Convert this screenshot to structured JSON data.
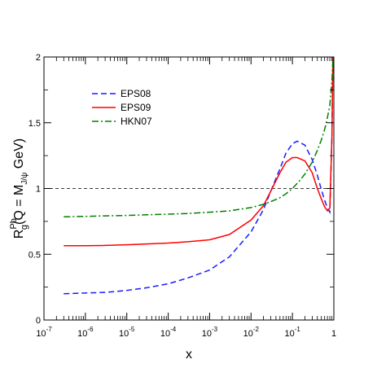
{
  "chart_data": {
    "type": "line",
    "xlabel": "x",
    "ylabel": {
      "main": "R",
      "sub": "g",
      "sup": "Pb",
      "rest": "(Q = M",
      "rest_sub": "J/ψ",
      "rest_end": " GeV)"
    },
    "xscale": "log",
    "xlim": [
      1e-07,
      1
    ],
    "ylim": [
      0,
      2
    ],
    "grid": false,
    "legend_placement": "top-left",
    "reference_line": {
      "y": 1,
      "style": "dashed",
      "color": "#000000"
    },
    "x_ticks": [
      {
        "value": 1e-07,
        "base": "10",
        "exp": "-7"
      },
      {
        "value": 1e-06,
        "base": "10",
        "exp": "-6"
      },
      {
        "value": 1e-05,
        "base": "10",
        "exp": "-5"
      },
      {
        "value": 0.0001,
        "base": "10",
        "exp": "-4"
      },
      {
        "value": 0.001,
        "base": "10",
        "exp": "-3"
      },
      {
        "value": 0.01,
        "base": "10",
        "exp": "-2"
      },
      {
        "value": 0.1,
        "base": "10",
        "exp": "-1"
      },
      {
        "value": 1,
        "base": "1",
        "exp": ""
      }
    ],
    "y_ticks": [
      {
        "value": 0,
        "label": "0"
      },
      {
        "value": 0.5,
        "label": "0.5"
      },
      {
        "value": 1,
        "label": "1"
      },
      {
        "value": 1.5,
        "label": "1.5"
      },
      {
        "value": 2,
        "label": "2"
      }
    ],
    "series": [
      {
        "name": "EPS08",
        "color": "#1a1aff",
        "style": "dashed",
        "x": [
          3e-07,
          1e-06,
          3e-06,
          1e-05,
          3e-05,
          0.0001,
          0.0003,
          0.001,
          0.003,
          0.01,
          0.02,
          0.03,
          0.05,
          0.07,
          0.1,
          0.13,
          0.2,
          0.3,
          0.4,
          0.5,
          0.6,
          0.7,
          0.8,
          0.9,
          0.95
        ],
        "y": [
          0.2,
          0.205,
          0.21,
          0.225,
          0.245,
          0.275,
          0.32,
          0.38,
          0.48,
          0.67,
          0.84,
          0.98,
          1.15,
          1.27,
          1.34,
          1.36,
          1.33,
          1.22,
          1.1,
          0.99,
          0.91,
          0.85,
          0.82,
          1.4,
          2.0
        ]
      },
      {
        "name": "EPS09",
        "color": "#ff0000",
        "style": "solid",
        "x": [
          3e-07,
          1e-06,
          3e-06,
          1e-05,
          3e-05,
          0.0001,
          0.0003,
          0.001,
          0.003,
          0.01,
          0.02,
          0.03,
          0.05,
          0.07,
          0.1,
          0.13,
          0.2,
          0.3,
          0.4,
          0.5,
          0.6,
          0.7,
          0.8,
          0.9,
          0.95
        ],
        "y": [
          0.565,
          0.565,
          0.567,
          0.572,
          0.578,
          0.585,
          0.595,
          0.61,
          0.65,
          0.76,
          0.87,
          0.98,
          1.12,
          1.2,
          1.235,
          1.235,
          1.21,
          1.12,
          1.0,
          0.92,
          0.86,
          0.83,
          0.85,
          1.4,
          2.0
        ]
      },
      {
        "name": "HKN07",
        "color": "#008000",
        "style": "dashdot",
        "x": [
          3e-07,
          1e-06,
          3e-06,
          1e-05,
          3e-05,
          0.0001,
          0.0003,
          0.001,
          0.003,
          0.01,
          0.02,
          0.03,
          0.05,
          0.07,
          0.1,
          0.15,
          0.2,
          0.3,
          0.4,
          0.5,
          0.6,
          0.7,
          0.8,
          0.9,
          0.95
        ],
        "y": [
          0.785,
          0.788,
          0.792,
          0.795,
          0.8,
          0.805,
          0.81,
          0.82,
          0.83,
          0.855,
          0.88,
          0.9,
          0.93,
          0.96,
          1.0,
          1.06,
          1.11,
          1.2,
          1.29,
          1.37,
          1.45,
          1.54,
          1.63,
          1.82,
          2.0
        ]
      }
    ]
  }
}
